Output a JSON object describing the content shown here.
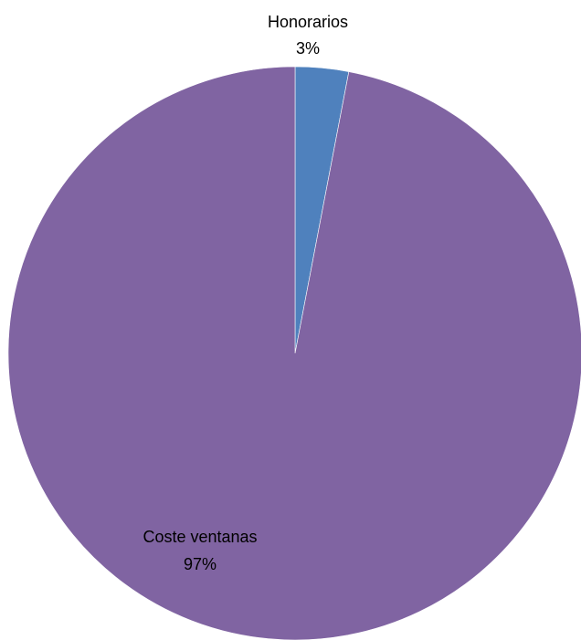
{
  "chart_data": {
    "type": "pie",
    "title": "",
    "slices": [
      {
        "label": "Honorarios",
        "value": 3,
        "value_label": "3%",
        "color": "#4F81BD"
      },
      {
        "label": "Coste ventanas",
        "value": 97,
        "value_label": "97%",
        "color": "#8064A2"
      }
    ],
    "start_angle": "12 o'clock",
    "direction": "clockwise",
    "legend": "none"
  }
}
